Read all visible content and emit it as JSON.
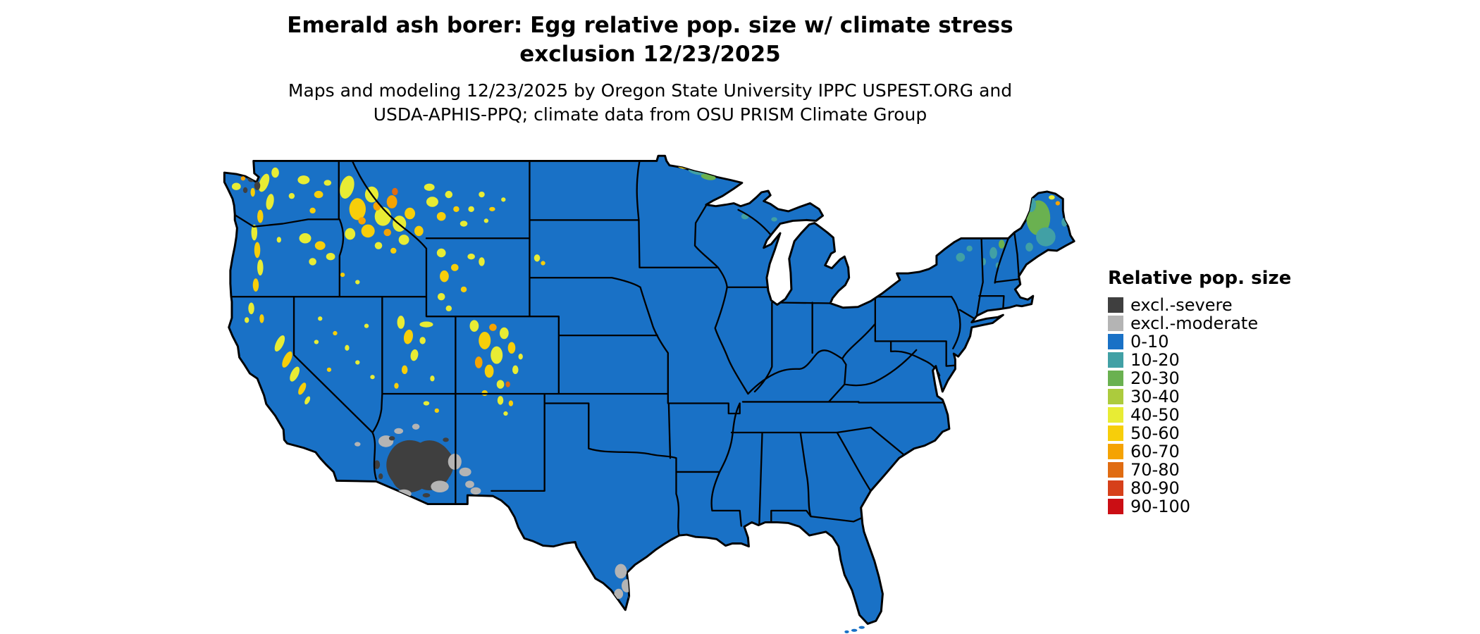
{
  "header": {
    "title_lines": [
      "Emerald ash borer: Egg relative pop. size w/ climate stress",
      "exclusion 12/23/2025"
    ],
    "subtitle_lines": [
      "Maps and modeling 12/23/2025 by Oregon State University IPPC USPEST.ORG and",
      "USDA-APHIS-PPQ; climate data from OSU PRISM Climate Group"
    ]
  },
  "map": {
    "region": "Continental United States",
    "border_color": "#000000",
    "background_color": "#ffffff"
  },
  "legend": {
    "title": "Relative pop. size",
    "items": [
      {
        "label": "excl.-severe",
        "color": "#3f3f3f"
      },
      {
        "label": "excl.-moderate",
        "color": "#b4b4b4"
      },
      {
        "label": "0-10",
        "color": "#1971c6"
      },
      {
        "label": "10-20",
        "color": "#41a0a5"
      },
      {
        "label": "20-30",
        "color": "#6ab150"
      },
      {
        "label": "30-40",
        "color": "#accb3d"
      },
      {
        "label": "40-50",
        "color": "#e8ec34"
      },
      {
        "label": "50-60",
        "color": "#f7ce0a"
      },
      {
        "label": "60-70",
        "color": "#f5a302"
      },
      {
        "label": "70-80",
        "color": "#e06c12"
      },
      {
        "label": "80-90",
        "color": "#d6401a"
      },
      {
        "label": "90-100",
        "color": "#cb0e14"
      }
    ]
  }
}
